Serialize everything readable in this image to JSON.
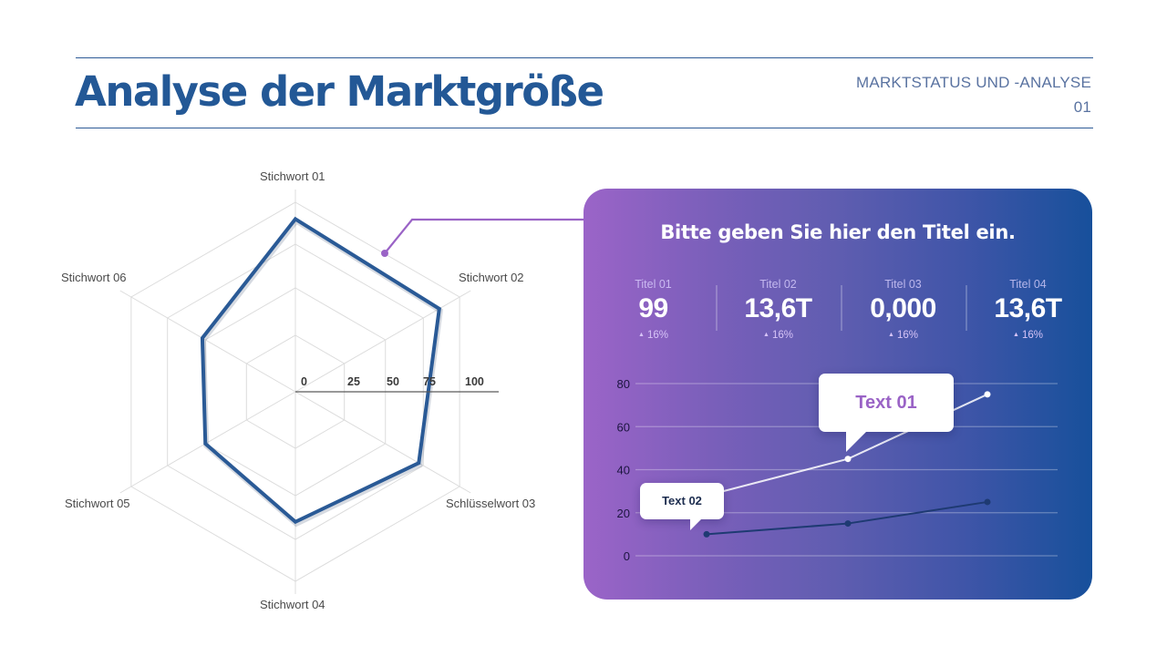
{
  "header": {
    "title": "Analyse der Marktgröße",
    "section_line1": "MARKTSTATUS UND -ANALYSE",
    "section_line2": "01"
  },
  "colors": {
    "title_blue": "#235896",
    "radar_line": "#2a5a96",
    "connector_purple": "#9a63c6",
    "card_gradient_start": "#9b64c8",
    "card_gradient_end": "#17509b",
    "bubble_text_purple": "#9a63c6"
  },
  "card": {
    "title": "Bitte geben Sie hier den Titel ein.",
    "kpis": [
      {
        "label": "Titel 01",
        "value": "99",
        "delta": "16%",
        "delta_icon": "triangle-up-icon"
      },
      {
        "label": "Titel 02",
        "value": "13,6T",
        "delta": "16%",
        "delta_icon": "triangle-up-icon"
      },
      {
        "label": "Titel 03",
        "value": "0,000",
        "delta": "16%",
        "delta_icon": "triangle-up-icon"
      },
      {
        "label": "Titel 04",
        "value": "13,6T",
        "delta": "16%",
        "delta_icon": "triangle-up-icon"
      }
    ],
    "callouts": {
      "text1": "Text 01",
      "text2": "Text 02"
    }
  },
  "chart_data": [
    {
      "type": "radar",
      "title": "",
      "categories": [
        "Stichwort 01",
        "Stichwort 02",
        "Schlüsselwort 03",
        "Stichwort 04",
        "Stichwort 05",
        "Stichwort 06"
      ],
      "values": [
        90,
        86,
        72,
        65,
        50,
        52
      ],
      "axis_ticks": [
        "0",
        "25",
        "50",
        "75",
        "100"
      ],
      "range": [
        0,
        100
      ],
      "grid": true
    },
    {
      "type": "line",
      "title": "",
      "x": [
        1,
        2,
        3
      ],
      "series": [
        {
          "name": "Text 01",
          "color": "#ffffff",
          "values": [
            28,
            45,
            75
          ]
        },
        {
          "name": "Text 02",
          "color": "#1e3a72",
          "values": [
            10,
            15,
            25
          ]
        }
      ],
      "yticks": [
        "0",
        "20",
        "40",
        "60",
        "80"
      ],
      "ylim": [
        0,
        80
      ],
      "grid": true,
      "legend": "none"
    }
  ]
}
